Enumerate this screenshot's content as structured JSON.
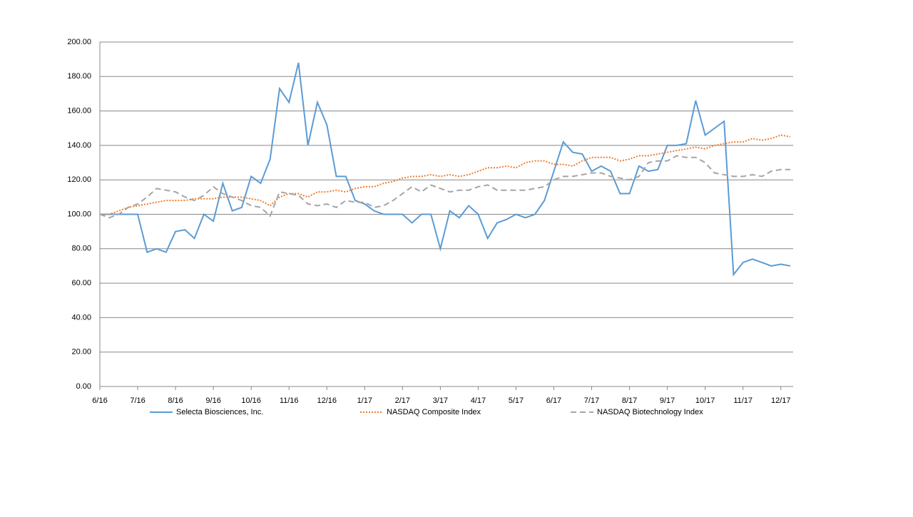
{
  "chart_data": {
    "type": "line",
    "categories": [
      "6/16",
      null,
      null,
      null,
      "7/16",
      null,
      null,
      null,
      "8/16",
      null,
      null,
      null,
      "9/16",
      null,
      null,
      null,
      "10/16",
      null,
      null,
      null,
      "11/16",
      null,
      null,
      null,
      "12/16",
      null,
      null,
      null,
      "1/17",
      null,
      null,
      null,
      "2/17",
      null,
      null,
      null,
      "3/17",
      null,
      null,
      null,
      "4/17",
      null,
      null,
      null,
      "5/17",
      null,
      null,
      null,
      "6/17",
      null,
      null,
      null,
      "7/17",
      null,
      null,
      null,
      "8/17",
      null,
      null,
      null,
      "9/17",
      null,
      null,
      null,
      "10/17",
      null,
      null,
      null,
      "11/17",
      null,
      null,
      null,
      "12/17",
      null
    ],
    "series": [
      {
        "name": "Selecta Biosciences, Inc.",
        "color": "#5b9bd5",
        "dash": "solid",
        "values": [
          100,
          100,
          100,
          100,
          100,
          78,
          80,
          78,
          90,
          91,
          86,
          100,
          96,
          118,
          102,
          104,
          122,
          118,
          132,
          173,
          165,
          188,
          140,
          165,
          152,
          122,
          122,
          108,
          106,
          102,
          100,
          100,
          100,
          95,
          100,
          100,
          80,
          102,
          98,
          105,
          100,
          86,
          95,
          97,
          100,
          98,
          100,
          108,
          125,
          142,
          136,
          135,
          125,
          128,
          125,
          112,
          112,
          128,
          125,
          126,
          140,
          140,
          141,
          166,
          146,
          150,
          154,
          65,
          72,
          74,
          72,
          70,
          71,
          70
        ]
      },
      {
        "name": "NASDAQ Composite Index",
        "color": "#ed7d31",
        "dash": "dot",
        "values": [
          100,
          100,
          102,
          104,
          105,
          106,
          107,
          108,
          108,
          108,
          109,
          109,
          109,
          110,
          110,
          110,
          109,
          108,
          105,
          110,
          112,
          112,
          110,
          113,
          113,
          114,
          113,
          115,
          116,
          116,
          118,
          119,
          121,
          122,
          122,
          123,
          122,
          123,
          122,
          123,
          125,
          127,
          127,
          128,
          127,
          130,
          131,
          131,
          129,
          129,
          128,
          131,
          133,
          133,
          133,
          131,
          132,
          134,
          134,
          135,
          136,
          137,
          138,
          139,
          138,
          140,
          141,
          142,
          142,
          144,
          143,
          144,
          146,
          145
        ]
      },
      {
        "name": "NASDAQ Biotechnology Index",
        "color": "#a5a5a5",
        "dash": "dash",
        "values": [
          100,
          98,
          100,
          104,
          106,
          110,
          115,
          114,
          113,
          110,
          108,
          111,
          116,
          112,
          110,
          108,
          105,
          104,
          99,
          113,
          112,
          111,
          106,
          105,
          106,
          104,
          108,
          107,
          107,
          104,
          105,
          108,
          112,
          116,
          113,
          117,
          115,
          113,
          114,
          114,
          116,
          117,
          114,
          114,
          114,
          114,
          115,
          116,
          120,
          122,
          122,
          123,
          124,
          124,
          122,
          121,
          120,
          122,
          130,
          131,
          131,
          134,
          133,
          133,
          130,
          124,
          123,
          122,
          122,
          123,
          122,
          125,
          126,
          126
        ]
      }
    ],
    "ylim": [
      0,
      200
    ],
    "yticks": [
      {
        "value": 0,
        "label": "0.00"
      },
      {
        "value": 20,
        "label": "20.00"
      },
      {
        "value": 40,
        "label": "40.00"
      },
      {
        "value": 60,
        "label": "60.00"
      },
      {
        "value": 80,
        "label": "80.00"
      },
      {
        "value": 100,
        "label": "100.00"
      },
      {
        "value": 120,
        "label": "120.00"
      },
      {
        "value": 140,
        "label": "140.00"
      },
      {
        "value": 160,
        "label": "160.00"
      },
      {
        "value": 180,
        "label": "180.00"
      },
      {
        "value": 200,
        "label": "200.00"
      }
    ],
    "grid": true,
    "legend": "bottom"
  }
}
